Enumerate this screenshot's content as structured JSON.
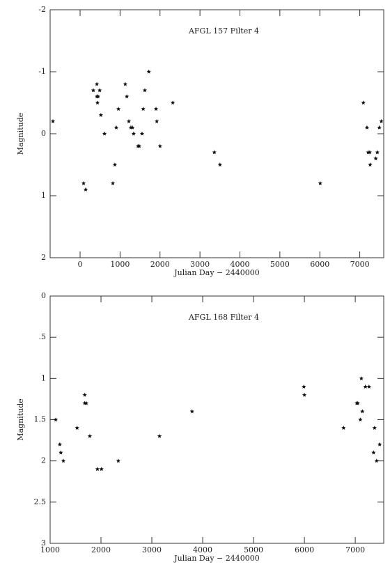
{
  "chart_data": [
    {
      "type": "scatter",
      "title": "AFGL 157  Filter 4",
      "xlabel": "Julian Day − 2440000",
      "ylabel": "Magnitude",
      "color": "#111",
      "y_inverted": true,
      "xlim": [
        -750,
        7600
      ],
      "xticks": [
        0,
        1000,
        2000,
        3000,
        4000,
        5000,
        6000,
        7000
      ],
      "ylim": [
        -2,
        2
      ],
      "yticks": [
        -2,
        -1,
        0,
        1,
        2
      ],
      "x": [
        -680,
        87,
        140,
        330,
        420,
        420,
        450,
        490,
        435,
        520,
        610,
        820,
        870,
        905,
        960,
        1130,
        1170,
        1220,
        1270,
        1310,
        1340,
        1450,
        1480,
        1550,
        1580,
        1620,
        1720,
        1900,
        1920,
        2000,
        2320,
        3360,
        3500,
        6010,
        7090,
        7180,
        7210,
        7250,
        7260,
        7400,
        7440,
        7490,
        7540
      ],
      "values": [
        -0.2,
        0.8,
        0.9,
        -0.7,
        -0.8,
        -0.6,
        -0.6,
        -0.7,
        -0.5,
        -0.3,
        0.0,
        0.8,
        0.5,
        -0.1,
        -0.4,
        -0.8,
        -0.6,
        -0.2,
        -0.1,
        -0.1,
        0.0,
        0.2,
        0.2,
        0.0,
        -0.4,
        -0.7,
        -1.0,
        -0.4,
        -0.2,
        0.2,
        -0.5,
        0.3,
        0.5,
        0.8,
        -0.5,
        -0.1,
        0.3,
        0.3,
        0.5,
        0.4,
        0.3,
        -0.1,
        -0.2
      ]
    },
    {
      "type": "scatter",
      "title": "AFGL 168  Filter 4",
      "xlabel": "Julian Day − 2440000",
      "ylabel": "Magnitude",
      "color": "#111",
      "y_inverted": true,
      "xlim": [
        1000,
        7560
      ],
      "xticks": [
        1000,
        2000,
        3000,
        4000,
        5000,
        6000,
        7000
      ],
      "ylim": [
        0,
        3
      ],
      "yticks": [
        0,
        {
          "value": 0.5,
          "label": ".5"
        },
        1,
        1.5,
        2,
        2.5,
        3
      ],
      "x": [
        1110,
        1190,
        1210,
        1260,
        1530,
        1680,
        1680,
        1710,
        1780,
        1930,
        2010,
        2340,
        3150,
        3790,
        5990,
        6000,
        6770,
        7030,
        7050,
        7100,
        7120,
        7140,
        7200,
        7270,
        7360,
        7380,
        7420,
        7480
      ],
      "values": [
        1.5,
        1.8,
        1.9,
        2.0,
        1.6,
        1.2,
        1.3,
        1.3,
        1.7,
        2.1,
        2.1,
        2.0,
        1.7,
        1.4,
        1.1,
        1.2,
        1.6,
        1.3,
        1.3,
        1.5,
        1.0,
        1.4,
        1.1,
        1.1,
        1.9,
        1.6,
        2.0,
        1.8
      ]
    }
  ]
}
